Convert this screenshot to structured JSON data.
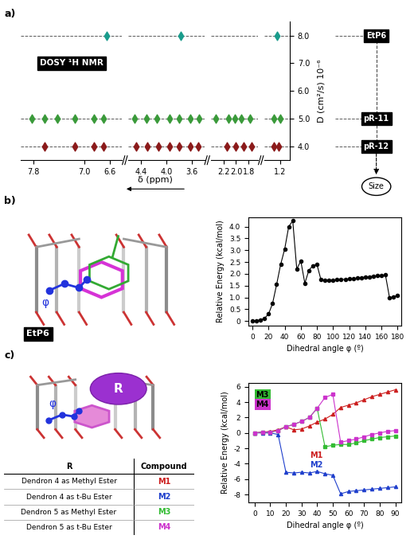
{
  "panel_labels": [
    "a)",
    "b)",
    "c)"
  ],
  "chart_data": [
    {
      "type": "scatter",
      "title": "DOSY ¹H NMR",
      "x_label": "δ (ppm)",
      "y_label": "D (cm²/s) 10⁻⁶",
      "xlim": [
        [
          8.0,
          6.4
        ],
        [
          4.6,
          3.4
        ],
        [
          2.4,
          1.65
        ],
        [
          1.45,
          1.05
        ]
      ],
      "xticks": [
        7.8,
        7.0,
        6.6,
        4.4,
        4.0,
        3.6,
        2.2,
        2.0,
        1.8,
        1.2
      ],
      "ylim": [
        3.5,
        8.5
      ],
      "yticks": [
        4.0,
        5.0,
        6.0,
        7.0,
        8.0
      ],
      "marker": "diamond",
      "annotations": [
        "Size"
      ],
      "series": [
        {
          "name": "EtP6",
          "color": "#1a9c8c",
          "x": [
            6.65,
            3.78,
            1.25
          ],
          "values": [
            8.0,
            8.0,
            8.0
          ]
        },
        {
          "name": "pR-11",
          "color": "#3a9a3a",
          "x": [
            7.82,
            7.62,
            7.42,
            7.15,
            6.85,
            6.7,
            4.5,
            4.32,
            4.15,
            3.95,
            3.8,
            3.62,
            3.48,
            2.32,
            2.12,
            2.02,
            1.92,
            1.78,
            1.3,
            1.2
          ],
          "values": [
            5.0,
            5.0,
            5.0,
            5.0,
            5.0,
            5.0,
            5.0,
            5.0,
            5.0,
            5.0,
            5.0,
            5.0,
            5.0,
            5.0,
            5.0,
            5.0,
            5.0,
            5.0,
            5.0,
            5.0
          ]
        },
        {
          "name": "pR-12",
          "color": "#8b1a1a",
          "x": [
            7.62,
            7.15,
            6.85,
            6.7,
            4.48,
            4.3,
            4.12,
            3.95,
            3.8,
            3.62,
            3.5,
            2.15,
            2.0,
            1.88,
            1.75,
            1.3,
            1.22
          ],
          "values": [
            4.0,
            4.0,
            4.0,
            4.0,
            4.0,
            4.0,
            4.0,
            4.0,
            4.0,
            4.0,
            4.0,
            4.0,
            4.0,
            4.0,
            4.0,
            4.0,
            4.0
          ]
        }
      ]
    },
    {
      "type": "line",
      "x_label": "Dihedral angle φ (º)",
      "y_label": "Relative Energy (kcal/mol)",
      "xlim": [
        -5,
        185
      ],
      "xticks": [
        0,
        20,
        40,
        60,
        80,
        100,
        120,
        140,
        160,
        180
      ],
      "ylim": [
        -0.2,
        4.4
      ],
      "yticks": [
        0,
        0.5,
        1.0,
        1.5,
        2.0,
        2.5,
        3.0,
        3.5,
        4.0
      ],
      "series": [
        {
          "color": "#000000",
          "marker": "circle",
          "x": [
            0,
            5,
            10,
            15,
            20,
            25,
            30,
            35,
            40,
            45,
            50,
            55,
            60,
            65,
            70,
            75,
            80,
            85,
            90,
            95,
            100,
            105,
            110,
            115,
            120,
            125,
            130,
            135,
            140,
            145,
            150,
            155,
            160,
            165,
            170,
            175,
            180
          ],
          "values": [
            0.0,
            0.02,
            0.05,
            0.12,
            0.3,
            0.75,
            1.55,
            2.4,
            3.05,
            4.0,
            4.25,
            2.2,
            2.55,
            1.6,
            2.15,
            2.35,
            2.4,
            1.75,
            1.73,
            1.73,
            1.74,
            1.75,
            1.76,
            1.77,
            1.79,
            1.8,
            1.82,
            1.84,
            1.86,
            1.88,
            1.9,
            1.92,
            1.94,
            1.95,
            1.0,
            1.02,
            1.1
          ]
        }
      ]
    },
    {
      "type": "line",
      "x_label": "Dihedral angle φ (º)",
      "y_label": "Relative Energy (kcal/mol)",
      "xlim": [
        -4,
        94
      ],
      "xticks": [
        0,
        10,
        20,
        30,
        40,
        50,
        60,
        70,
        80,
        90
      ],
      "ylim": [
        -9,
        6.5
      ],
      "yticks": [
        -8,
        -6,
        -4,
        -2,
        0,
        2,
        4,
        6
      ],
      "series": [
        {
          "name": "M1",
          "color": "#cc1f1f",
          "marker": "triangle",
          "x": [
            0,
            5,
            10,
            15,
            20,
            25,
            30,
            35,
            40,
            45,
            50,
            55,
            60,
            65,
            70,
            75,
            80,
            85,
            90
          ],
          "values": [
            0,
            0.1,
            0.2,
            0.4,
            0.8,
            0.4,
            0.5,
            0.9,
            1.4,
            1.8,
            2.4,
            3.3,
            3.6,
            3.9,
            4.3,
            4.7,
            5.0,
            5.3,
            5.6
          ]
        },
        {
          "name": "M2",
          "color": "#1f3fcc",
          "marker": "triangle",
          "x": [
            0,
            5,
            10,
            15,
            20,
            25,
            30,
            35,
            40,
            45,
            50,
            55,
            60,
            65,
            70,
            75,
            80,
            85,
            90
          ],
          "values": [
            0,
            0,
            0,
            -0.2,
            -5.1,
            -5.2,
            -5.1,
            -5.2,
            -5.0,
            -5.3,
            -5.5,
            -7.9,
            -7.6,
            -7.5,
            -7.4,
            -7.3,
            -7.2,
            -7.1,
            -7.0
          ]
        },
        {
          "name": "M3",
          "color": "#33bb33",
          "marker": "square",
          "x": [
            0,
            5,
            10,
            15,
            20,
            25,
            30,
            35,
            40,
            45,
            50,
            55,
            60,
            65,
            70,
            75,
            80,
            85,
            90
          ],
          "values": [
            0,
            0.1,
            0.1,
            0.3,
            0.8,
            1.1,
            1.5,
            2.0,
            3.2,
            -1.8,
            -1.6,
            -1.5,
            -1.5,
            -1.3,
            -1.0,
            -0.8,
            -0.6,
            -0.5,
            -0.4
          ]
        },
        {
          "name": "M4",
          "color": "#cc33cc",
          "marker": "square",
          "x": [
            0,
            5,
            10,
            15,
            20,
            25,
            30,
            35,
            40,
            45,
            50,
            55,
            60,
            65,
            70,
            75,
            80,
            85,
            90
          ],
          "values": [
            0,
            0.1,
            0.1,
            0.3,
            0.8,
            1.1,
            1.5,
            2.0,
            3.2,
            4.6,
            5.0,
            -1.2,
            -1.0,
            -0.8,
            -0.5,
            -0.2,
            0.0,
            0.2,
            0.3
          ]
        }
      ]
    }
  ],
  "diagrams": [
    {
      "label": "EtP6",
      "angle_label": "φ"
    },
    {
      "sphere_label": "R",
      "angle_label": "φ"
    }
  ],
  "table": {
    "header": [
      "R",
      "Compound"
    ],
    "rows": [
      [
        "Dendron 4 as Methyl Ester",
        "M1"
      ],
      [
        "Dendron 4 as t-Bu Ester",
        "M2"
      ],
      [
        "Dendron 5 as Methyl Ester",
        "M3"
      ],
      [
        "Dendron 5 as t-Bu Ester",
        "M4"
      ]
    ]
  }
}
